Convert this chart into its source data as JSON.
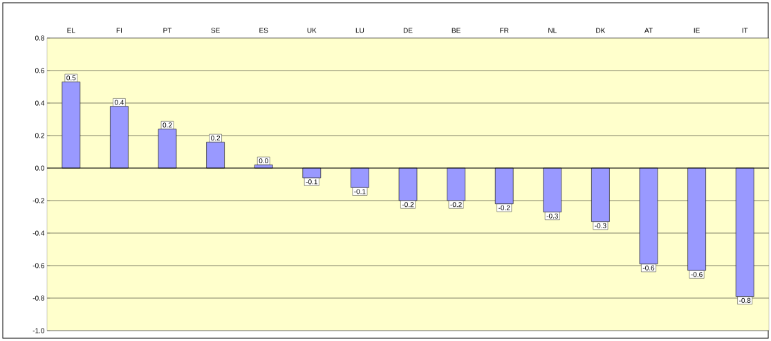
{
  "chart_data": {
    "type": "bar",
    "categories": [
      "EL",
      "FI",
      "PT",
      "SE",
      "ES",
      "UK",
      "LU",
      "DE",
      "BE",
      "FR",
      "NL",
      "DK",
      "AT",
      "IE",
      "IT"
    ],
    "values": [
      0.53,
      0.38,
      0.24,
      0.16,
      0.02,
      -0.06,
      -0.12,
      -0.2,
      -0.2,
      -0.22,
      -0.27,
      -0.33,
      -0.59,
      -0.63,
      -0.79
    ],
    "value_labels": [
      "0.5",
      "0.4",
      "0.2",
      "0.2",
      "0.0",
      "-0.1",
      "-0.1",
      "-0.2",
      "-0.2",
      "-0.2",
      "-0.3",
      "-0.3",
      "-0.6",
      "-0.6",
      "-0.8"
    ],
    "color": "#9999ff",
    "ylim": [
      -1.0,
      0.8
    ],
    "yticks": [
      {
        "value": -1.0,
        "label": "-1.0"
      },
      -0.8,
      -0.6,
      -0.4,
      -0.2,
      {
        "value": 0,
        "label": "0.0"
      },
      0.2,
      0.4,
      0.6,
      0.8
    ],
    "grid": "y"
  }
}
